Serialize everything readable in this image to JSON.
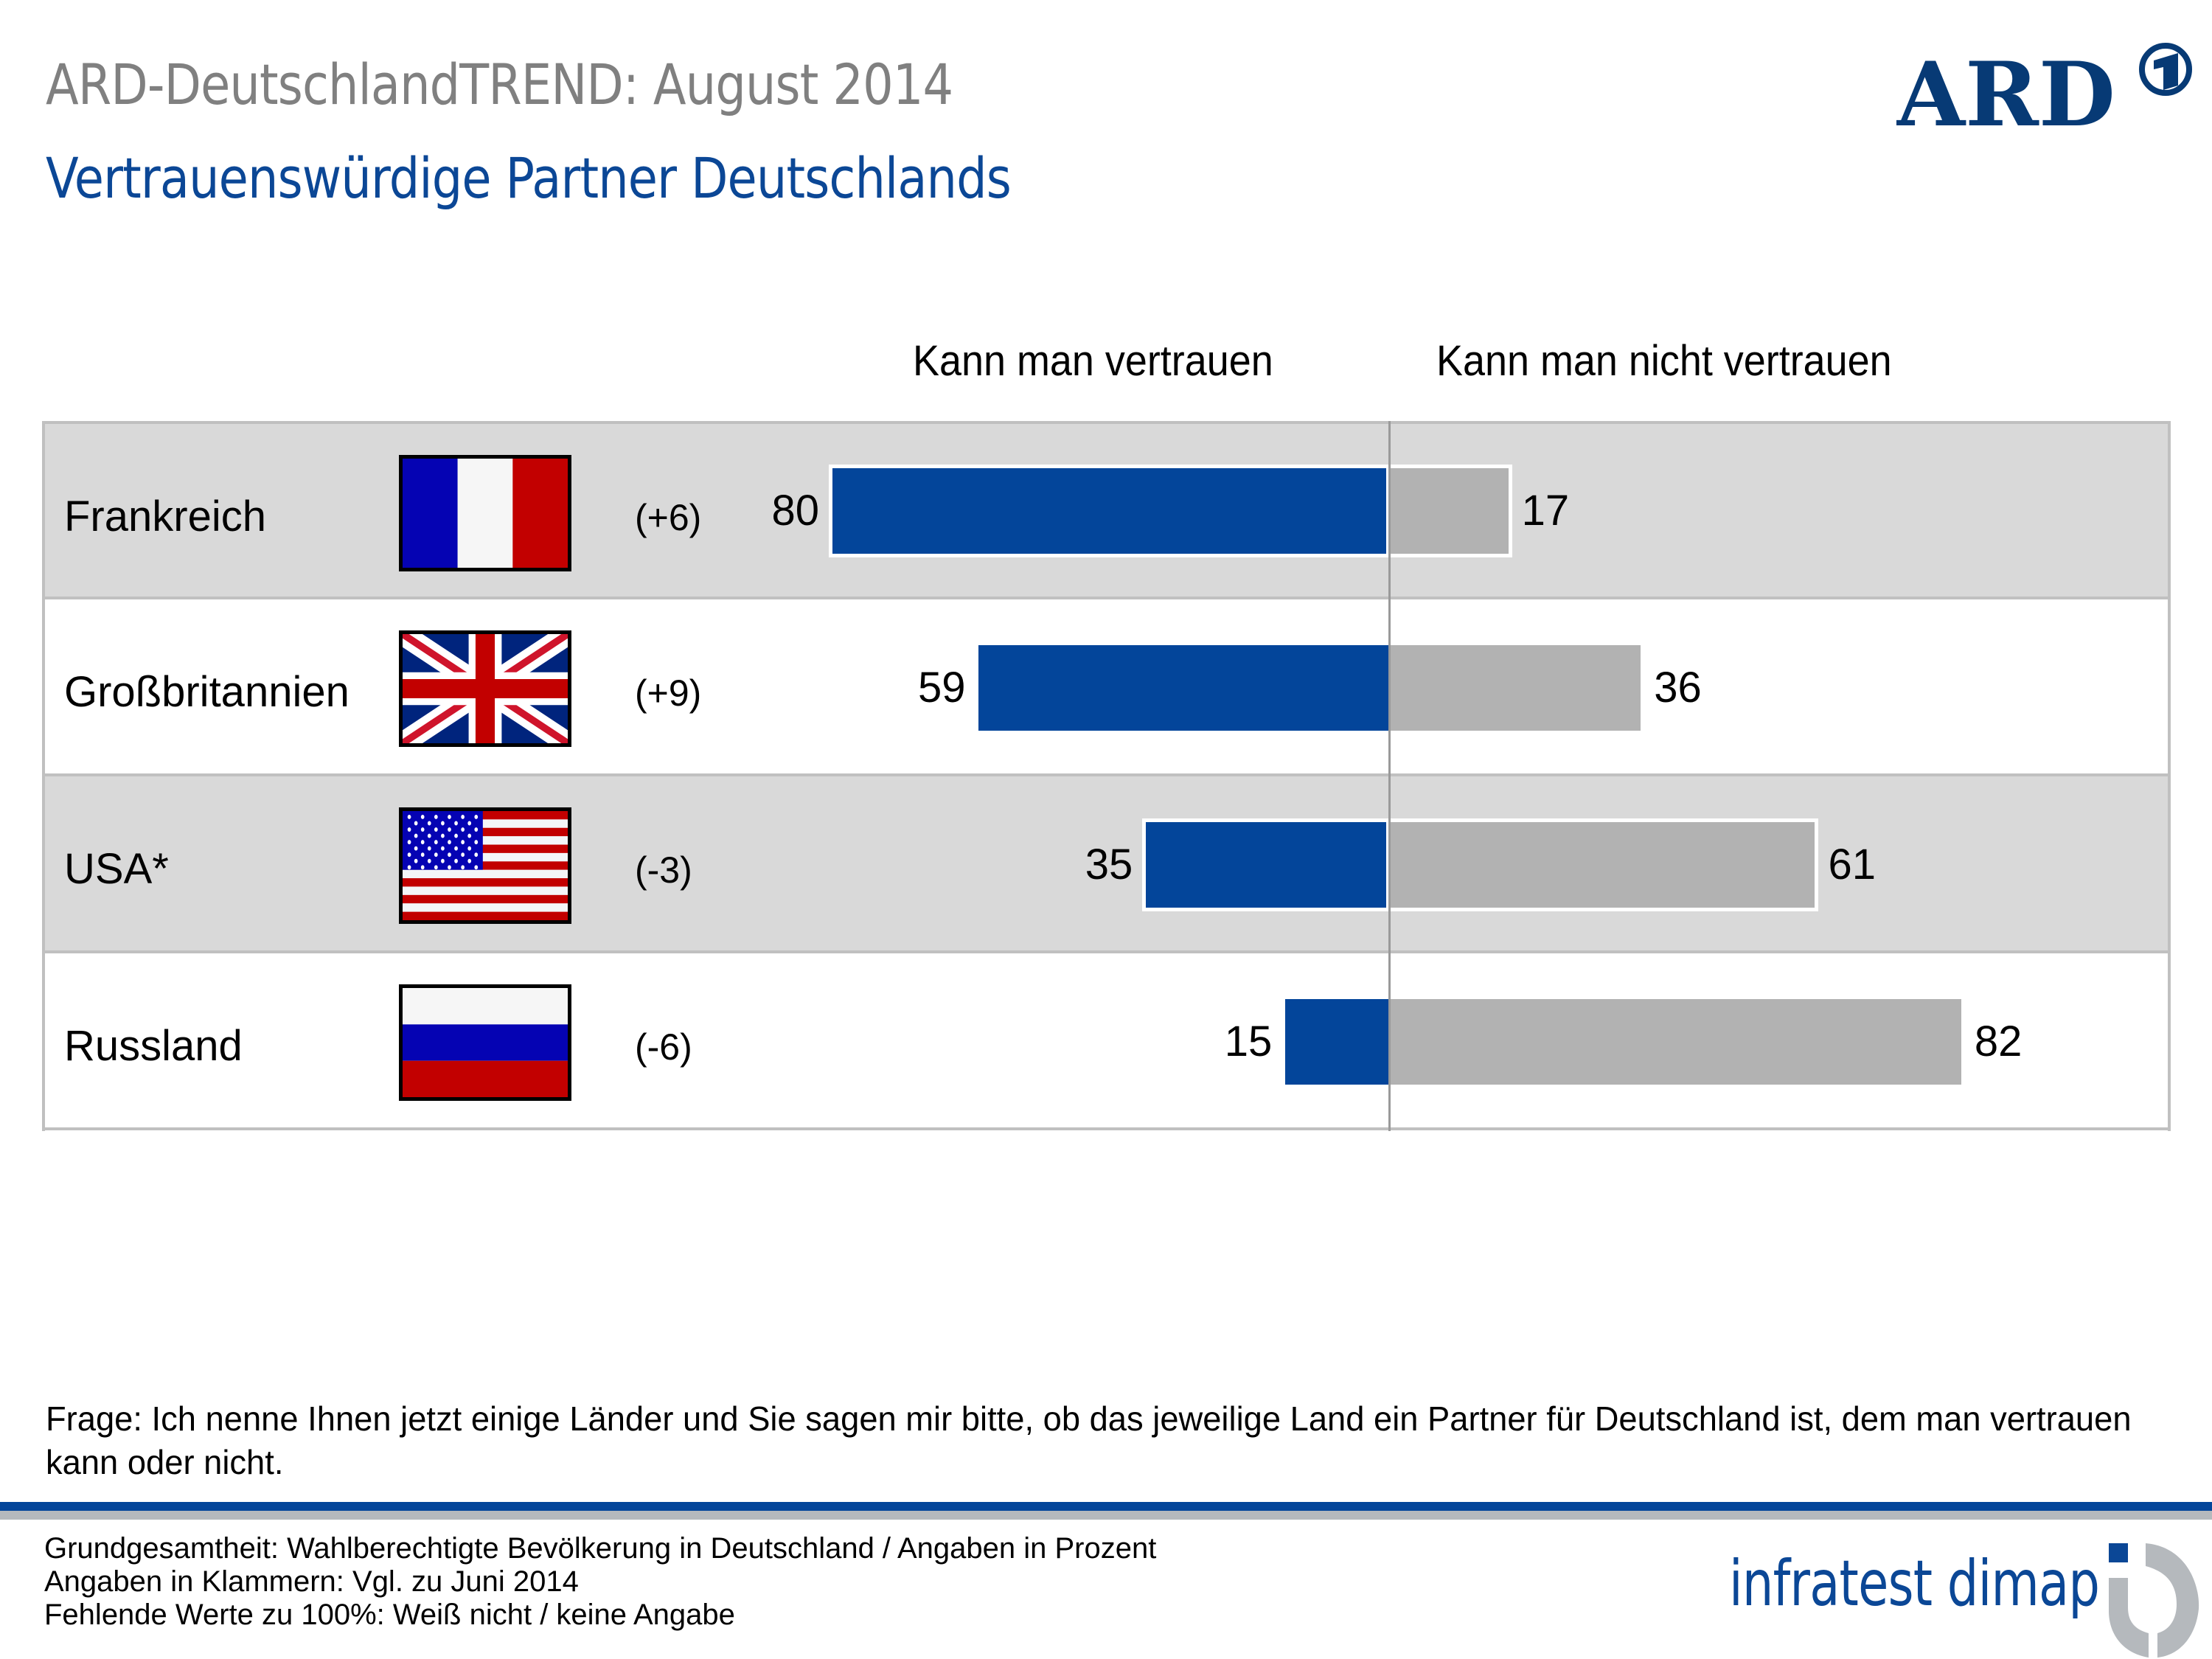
{
  "header": {
    "title": "ARD-DeutschlandTREND: August 2014",
    "subtitle": "Vertrauenswürdige Partner Deutschlands",
    "logo_text": "ARD",
    "logo_icon": "ard-one-icon"
  },
  "colors": {
    "trust": "#03459a",
    "distrust": "#b2b2b2",
    "title_gray": "#808080",
    "subtitle_blue": "#0b4796",
    "row_shade": "#d9d9d9"
  },
  "chart_data": {
    "type": "bar",
    "orientation": "horizontal-diverging",
    "title": "Vertrauenswürdige Partner Deutschlands",
    "categories": [
      "Frankreich",
      "Großbritannien",
      "USA*",
      "Russland"
    ],
    "series": [
      {
        "name": "Kann man vertrauen",
        "values": [
          80,
          59,
          35,
          15
        ],
        "direction": "left"
      },
      {
        "name": "Kann man nicht vertrauen",
        "values": [
          17,
          36,
          61,
          82
        ],
        "direction": "right"
      }
    ],
    "changes": [
      "(+6)",
      "(+9)",
      "(-3)",
      "(-6)"
    ],
    "flags": [
      "france-flag-icon",
      "uk-flag-icon",
      "usa-flag-icon",
      "russia-flag-icon"
    ],
    "unit": "Prozent",
    "xlim": [
      -100,
      100
    ],
    "grid": false,
    "legend": "top"
  },
  "columns": {
    "trust_label": "Kann man vertrauen",
    "distrust_label": "Kann man nicht vertrauen"
  },
  "rows": [
    {
      "country": "Frankreich",
      "change": "(+6)",
      "trust": "80",
      "distrust": "17"
    },
    {
      "country": "Großbritannien",
      "change": "(+9)",
      "trust": "59",
      "distrust": "36"
    },
    {
      "country": "USA*",
      "change": "(-3)",
      "trust": "35",
      "distrust": "61"
    },
    {
      "country": "Russland",
      "change": "(-6)",
      "trust": "15",
      "distrust": "82"
    }
  ],
  "question": "Frage: Ich nenne Ihnen jetzt einige Länder und Sie sagen mir bitte, ob das jeweilige Land ein Partner für Deutschland ist, dem man vertrauen kann oder nicht.",
  "footer": {
    "lines": [
      "Grundgesamtheit: Wahlberechtigte Bevölkerung in Deutschland / Angaben in Prozent",
      "Angaben in Klammern: Vgl. zu Juni 2014",
      "Fehlende Werte zu 100%: Weiß nicht / keine Angabe"
    ],
    "brand": "infratest dimap"
  }
}
